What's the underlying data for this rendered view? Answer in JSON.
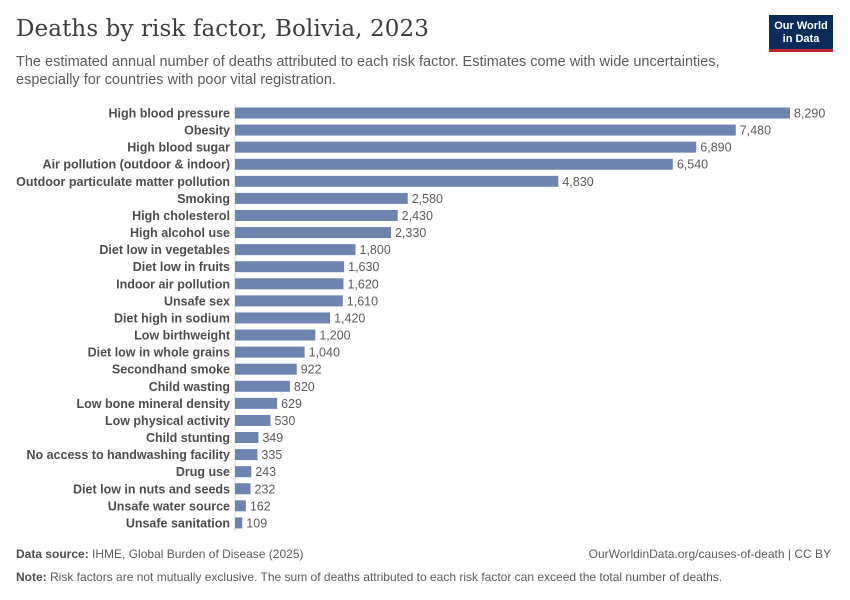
{
  "header": {
    "title": "Deaths by risk factor, Bolivia, 2023",
    "subtitle": "The estimated annual number of deaths attributed to each risk factor. Estimates come with wide uncertainties, especially for countries with poor vital registration."
  },
  "logo": {
    "line1": "Our World",
    "line2": "in Data"
  },
  "footer": {
    "source_label": "Data source:",
    "source_text": "IHME, Global Burden of Disease (2025)",
    "url": "OurWorldinData.org/causes-of-death | CC BY",
    "note_label": "Note:",
    "note_text": "Risk factors are not mutually exclusive. The sum of deaths attributed to each risk factor can exceed the total number of deaths."
  },
  "chart_data": {
    "type": "bar",
    "orientation": "horizontal",
    "title": "Deaths by risk factor, Bolivia, 2023",
    "xlabel": "",
    "ylabel": "",
    "bar_color": "#6d84b0",
    "categories": [
      "High blood pressure",
      "Obesity",
      "High blood sugar",
      "Air pollution (outdoor & indoor)",
      "Outdoor particulate matter pollution",
      "Smoking",
      "High cholesterol",
      "High alcohol use",
      "Diet low in vegetables",
      "Diet low in fruits",
      "Indoor air pollution",
      "Unsafe sex",
      "Diet high in sodium",
      "Low birthweight",
      "Diet low in whole grains",
      "Secondhand smoke",
      "Child wasting",
      "Low bone mineral density",
      "Low physical activity",
      "Child stunting",
      "No access to handwashing facility",
      "Drug use",
      "Diet low in nuts and seeds",
      "Unsafe water source",
      "Unsafe sanitation"
    ],
    "values": [
      8290,
      7480,
      6890,
      6540,
      4830,
      2580,
      2430,
      2330,
      1800,
      1630,
      1620,
      1610,
      1420,
      1200,
      1040,
      922,
      820,
      629,
      530,
      349,
      335,
      243,
      232,
      162,
      109
    ],
    "value_labels": [
      "8,290",
      "7,480",
      "6,890",
      "6,540",
      "4,830",
      "2,580",
      "2,430",
      "2,330",
      "1,800",
      "1,630",
      "1,620",
      "1,610",
      "1,420",
      "1,200",
      "1,040",
      "922",
      "820",
      "629",
      "530",
      "349",
      "335",
      "243",
      "232",
      "162",
      "109"
    ],
    "xlim": [
      0,
      8290
    ],
    "grid": false,
    "legend": "none"
  }
}
